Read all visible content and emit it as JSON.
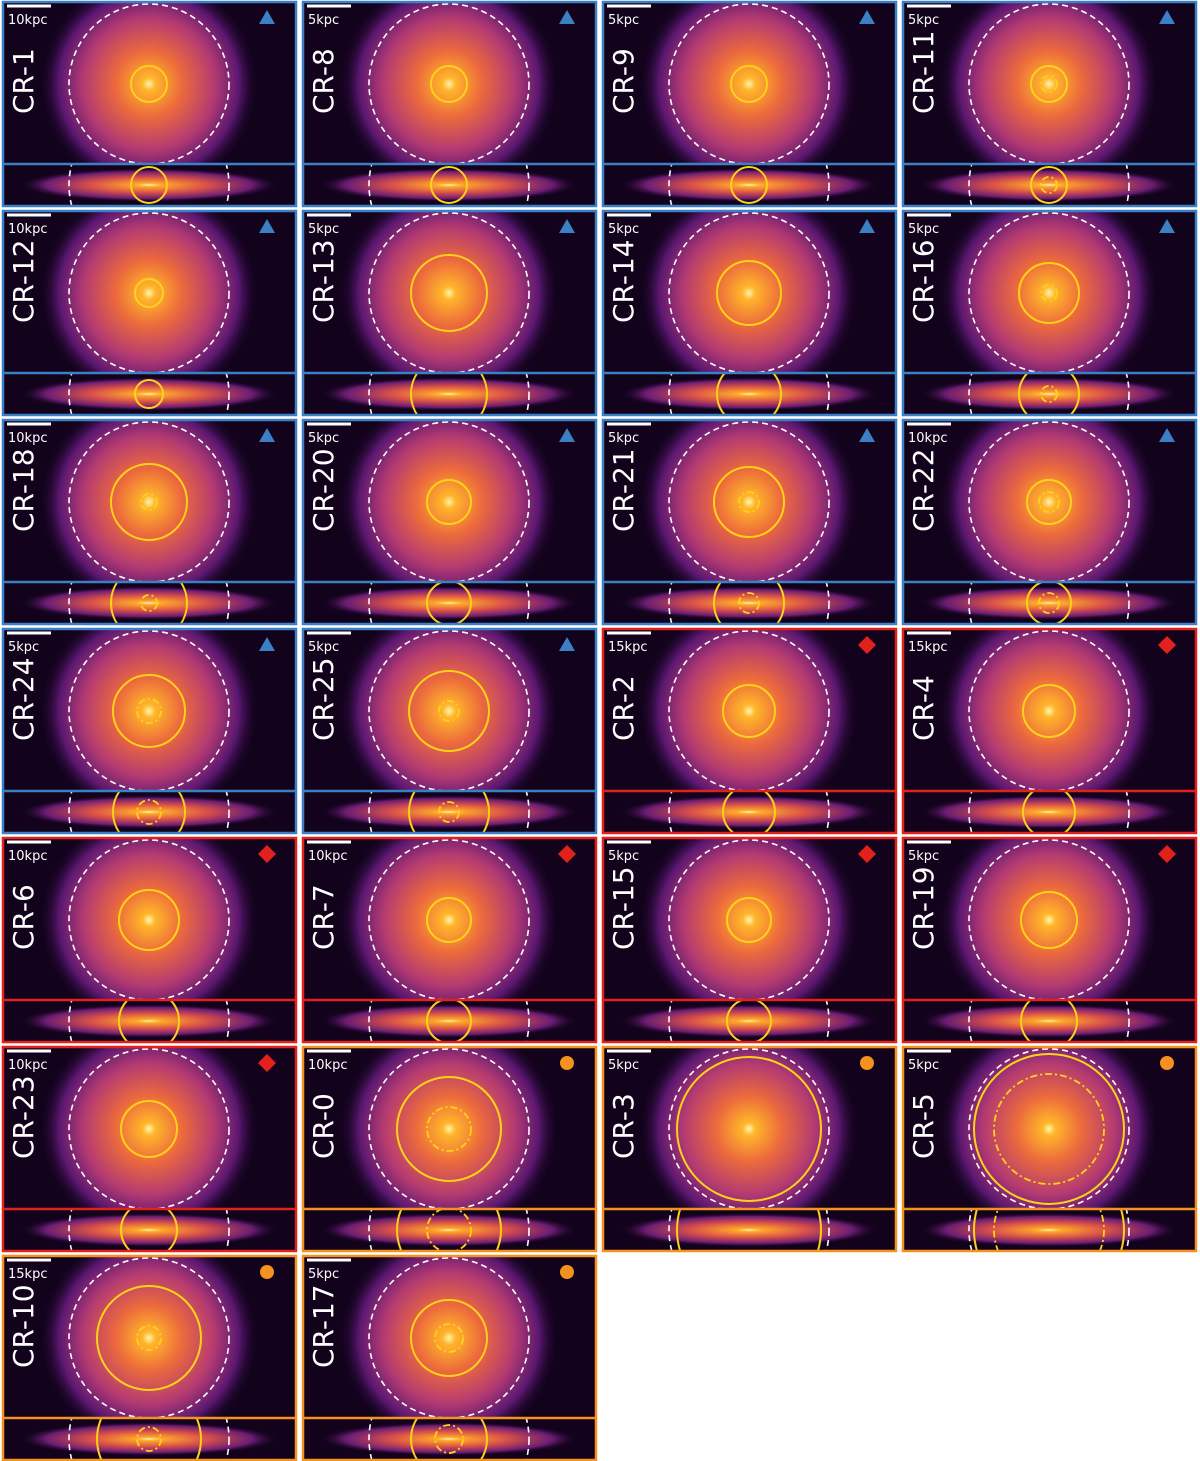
{
  "panels": [
    {
      "name": "CR-1",
      "scale": "10kpc",
      "marker": "triangle",
      "color": "#3b7fc4"
    },
    {
      "name": "CR-8",
      "scale": "5kpc",
      "marker": "triangle",
      "color": "#3b7fc4"
    },
    {
      "name": "CR-9",
      "scale": "5kpc",
      "marker": "triangle",
      "color": "#3b7fc4"
    },
    {
      "name": "CR-11",
      "scale": "5kpc",
      "marker": "triangle",
      "color": "#3b7fc4"
    },
    {
      "name": "CR-12",
      "scale": "10kpc",
      "marker": "triangle",
      "color": "#3b7fc4"
    },
    {
      "name": "CR-13",
      "scale": "5kpc",
      "marker": "triangle",
      "color": "#3b7fc4"
    },
    {
      "name": "CR-14",
      "scale": "5kpc",
      "marker": "triangle",
      "color": "#3b7fc4"
    },
    {
      "name": "CR-16",
      "scale": "5kpc",
      "marker": "triangle",
      "color": "#3b7fc4"
    },
    {
      "name": "CR-18",
      "scale": "10kpc",
      "marker": "triangle",
      "color": "#3b7fc4"
    },
    {
      "name": "CR-20",
      "scale": "5kpc",
      "marker": "triangle",
      "color": "#3b7fc4"
    },
    {
      "name": "CR-21",
      "scale": "5kpc",
      "marker": "triangle",
      "color": "#3b7fc4"
    },
    {
      "name": "CR-22",
      "scale": "10kpc",
      "marker": "triangle",
      "color": "#3b7fc4"
    },
    {
      "name": "CR-24",
      "scale": "5kpc",
      "marker": "triangle",
      "color": "#3b7fc4"
    },
    {
      "name": "CR-25",
      "scale": "5kpc",
      "marker": "triangle",
      "color": "#3b7fc4"
    },
    {
      "name": "CR-2",
      "scale": "15kpc",
      "marker": "diamond",
      "color": "#e3211c"
    },
    {
      "name": "CR-4",
      "scale": "15kpc",
      "marker": "diamond",
      "color": "#e3211c"
    },
    {
      "name": "CR-6",
      "scale": "10kpc",
      "marker": "diamond",
      "color": "#e3211c"
    },
    {
      "name": "CR-7",
      "scale": "10kpc",
      "marker": "diamond",
      "color": "#e3211c"
    },
    {
      "name": "CR-15",
      "scale": "5kpc",
      "marker": "diamond",
      "color": "#e3211c"
    },
    {
      "name": "CR-19",
      "scale": "5kpc",
      "marker": "diamond",
      "color": "#e3211c"
    },
    {
      "name": "CR-23",
      "scale": "10kpc",
      "marker": "diamond",
      "color": "#e3211c"
    },
    {
      "name": "CR-0",
      "scale": "10kpc",
      "marker": "circle",
      "color": "#f59120"
    },
    {
      "name": "CR-3",
      "scale": "5kpc",
      "marker": "circle",
      "color": "#f59120"
    },
    {
      "name": "CR-5",
      "scale": "5kpc",
      "marker": "circle",
      "color": "#f59120"
    },
    {
      "name": "CR-10",
      "scale": "15kpc",
      "marker": "circle",
      "color": "#f59120"
    },
    {
      "name": "CR-17",
      "scale": "5kpc",
      "marker": "circle",
      "color": "#f59120"
    }
  ]
}
